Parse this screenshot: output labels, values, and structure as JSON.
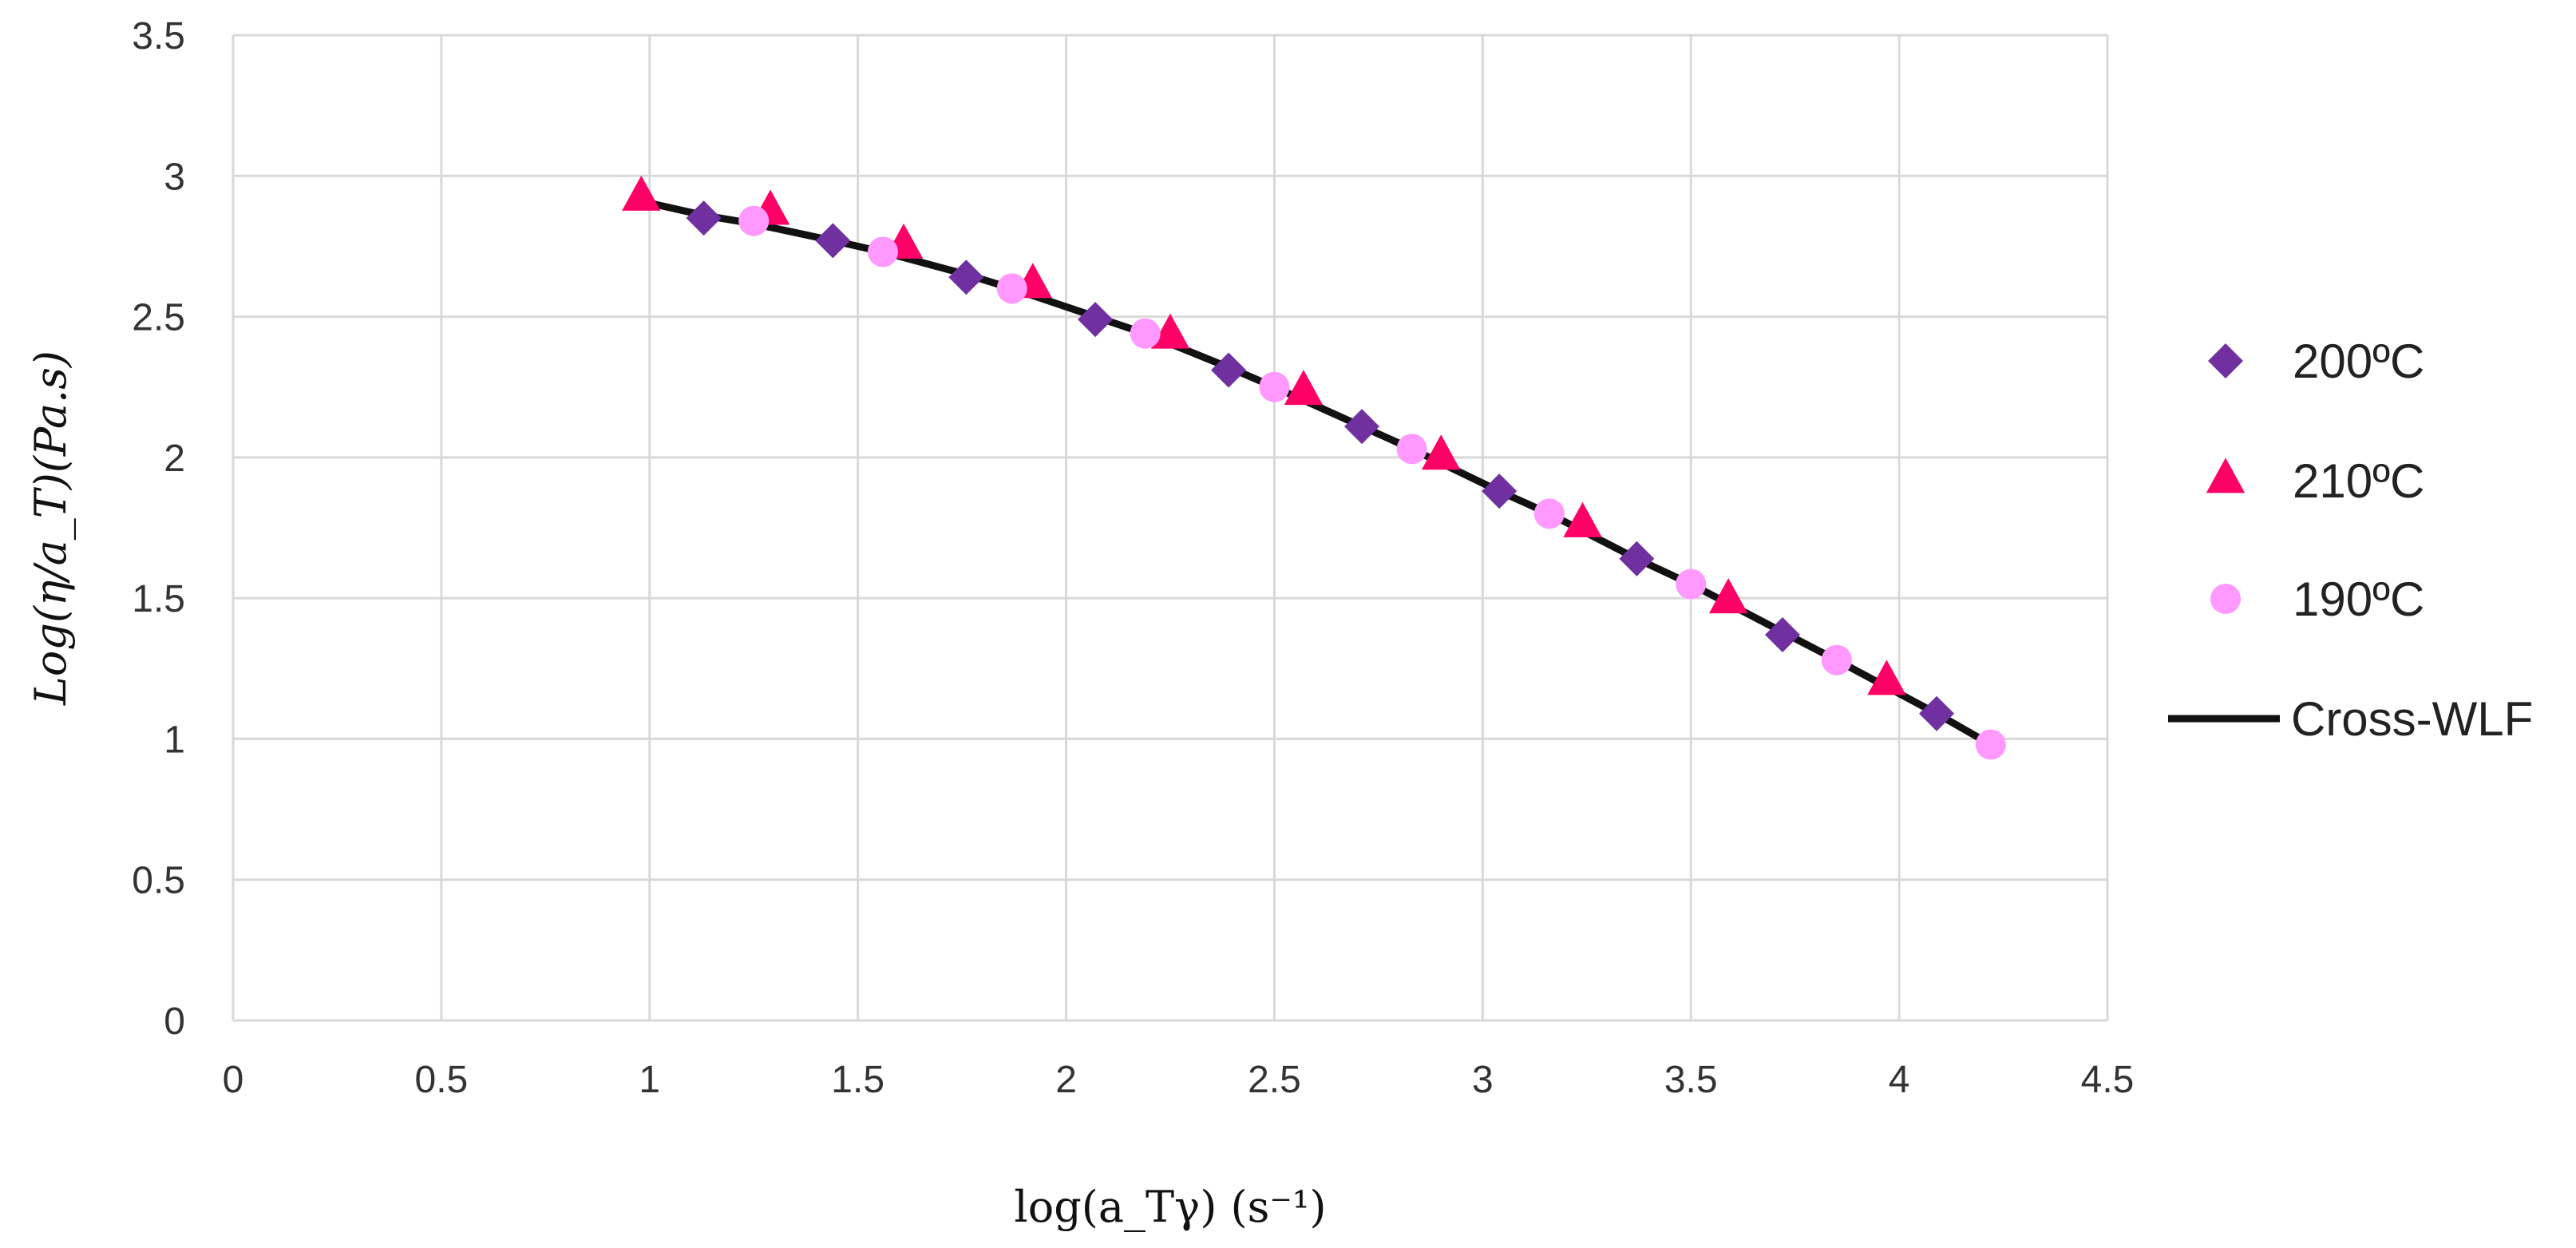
{
  "chart_data": {
    "type": "scatter",
    "xlabel": "log(a_Tγ) (s⁻¹)",
    "ylabel": "Log(η/a_T)(Pa.s)",
    "xlim": [
      0,
      4.5
    ],
    "ylim": [
      0,
      3.5
    ],
    "x_ticks": [
      "0",
      "0.5",
      "1",
      "1.5",
      "2",
      "2.5",
      "3",
      "3.5",
      "4",
      "4.5"
    ],
    "y_ticks": [
      "0",
      "0.5",
      "1",
      "1.5",
      "2",
      "2.5",
      "3",
      "3.5"
    ],
    "grid": true,
    "legend_position": "right",
    "series": [
      {
        "name": "200ºC",
        "marker": "diamond",
        "color": "#7030a0",
        "x": [
          1.13,
          1.44,
          1.76,
          2.07,
          2.39,
          2.71,
          3.04,
          3.37,
          3.72,
          4.09
        ],
        "y": [
          2.85,
          2.77,
          2.64,
          2.49,
          2.31,
          2.11,
          1.88,
          1.64,
          1.37,
          1.09
        ]
      },
      {
        "name": "210ºC",
        "marker": "triangle",
        "color": "#ff0066",
        "x": [
          0.98,
          1.29,
          1.61,
          1.92,
          2.25,
          2.57,
          2.9,
          3.24,
          3.59,
          3.97
        ],
        "y": [
          2.92,
          2.87,
          2.75,
          2.61,
          2.43,
          2.23,
          2.0,
          1.76,
          1.49,
          1.2
        ]
      },
      {
        "name": "190ºC",
        "marker": "circle",
        "color": "#ff99ff",
        "x": [
          1.25,
          1.56,
          1.87,
          2.19,
          2.5,
          2.83,
          3.16,
          3.5,
          3.85,
          4.22
        ],
        "y": [
          2.84,
          2.73,
          2.6,
          2.44,
          2.25,
          2.03,
          1.8,
          1.55,
          1.28,
          0.98
        ]
      },
      {
        "name": "Cross-WLF",
        "marker": "line",
        "color": "#111111",
        "x": [
          0.98,
          1.13,
          1.25,
          1.44,
          1.56,
          1.76,
          1.87,
          2.07,
          2.19,
          2.39,
          2.5,
          2.71,
          2.83,
          3.04,
          3.16,
          3.37,
          3.5,
          3.72,
          3.85,
          4.09,
          4.22
        ],
        "y": [
          2.91,
          2.86,
          2.83,
          2.77,
          2.73,
          2.65,
          2.6,
          2.5,
          2.44,
          2.32,
          2.25,
          2.11,
          2.03,
          1.88,
          1.8,
          1.64,
          1.55,
          1.38,
          1.28,
          1.09,
          0.98
        ]
      }
    ]
  }
}
